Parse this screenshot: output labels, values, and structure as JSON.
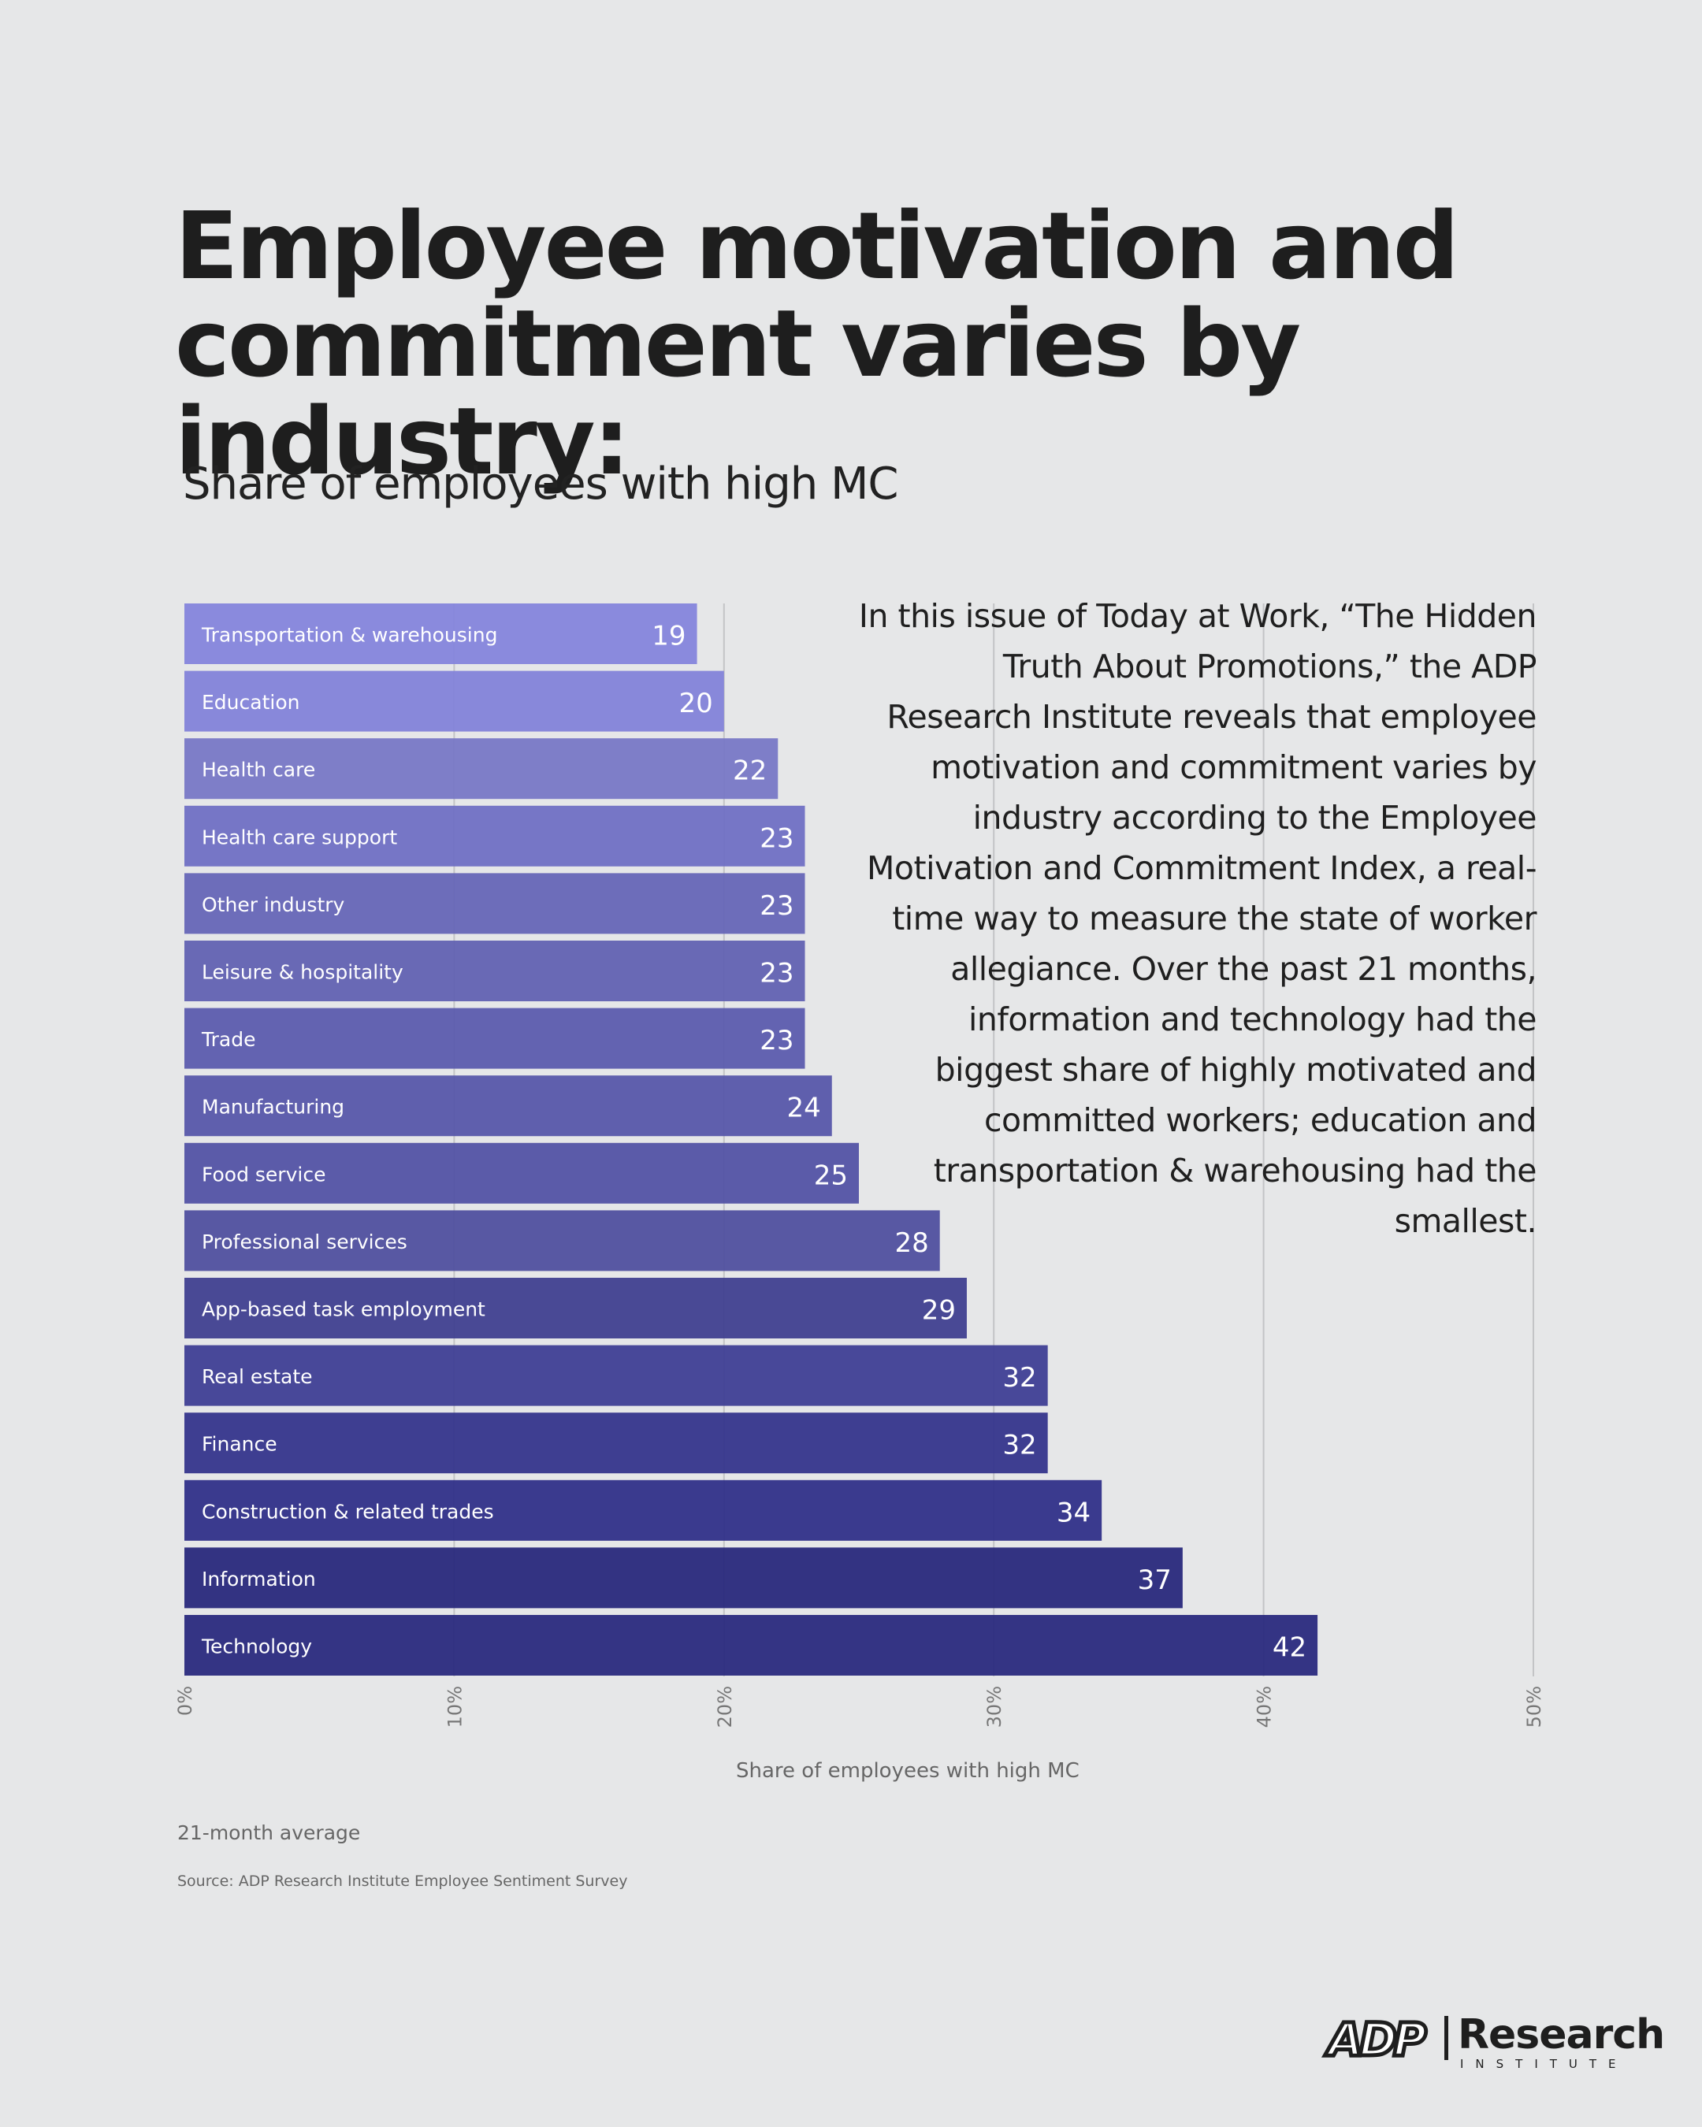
{
  "title_line1": "Employee motivation and",
  "title_line2": "commitment varies by industry:",
  "subtitle": "Share of employees with high MC",
  "blurb": "In this issue of Today at Work, “The Hidden Truth About Promotions,” the ADP Research Institute reveals that employee motivation and commitment varies by industry according to the Employee Motivation and Commitment Index, a real-time way to measure the state of worker allegiance. Over the past 21 months, information and technology had the biggest share of highly motivated and committed workers; education and transportation & warehousing had the smallest.",
  "footnote": "21-month average",
  "source": "Source: ADP Research Institute Employee Sentiment Survey",
  "logo": {
    "mark": "ADP",
    "word": "Research",
    "sub": "INSTITUTE"
  },
  "chart_data": {
    "type": "bar",
    "orientation": "horizontal",
    "title": "Share of employees with high MC",
    "xlabel": "Share of employees with high MC",
    "ylabel": "",
    "xlim": [
      0,
      50
    ],
    "xticks": [
      "0%",
      "10%",
      "20%",
      "30%",
      "40%",
      "50%"
    ],
    "grid": true,
    "categories": [
      "Transportation & warehousing",
      "Education",
      "Health care",
      "Health care support",
      "Other industry",
      "Leisure & hospitality",
      "Trade",
      "Manufacturing",
      "Food service",
      "Professional services",
      "App-based task employment",
      "Real estate",
      "Finance",
      "Construction & related trades",
      "Information",
      "Technology"
    ],
    "values": [
      19,
      20,
      22,
      23,
      23,
      23,
      23,
      24,
      25,
      28,
      29,
      32,
      32,
      34,
      37,
      42
    ],
    "colors": [
      "#8686dc",
      "#8484d9",
      "#7a7ac6",
      "#7272c4",
      "#6868b8",
      "#6464b3",
      "#5e5eae",
      "#5a5aaa",
      "#5656a6",
      "#5353a0",
      "#434392",
      "#424296",
      "#38388d",
      "#34348a",
      "#2c2c7e",
      "#2d2d80"
    ]
  }
}
